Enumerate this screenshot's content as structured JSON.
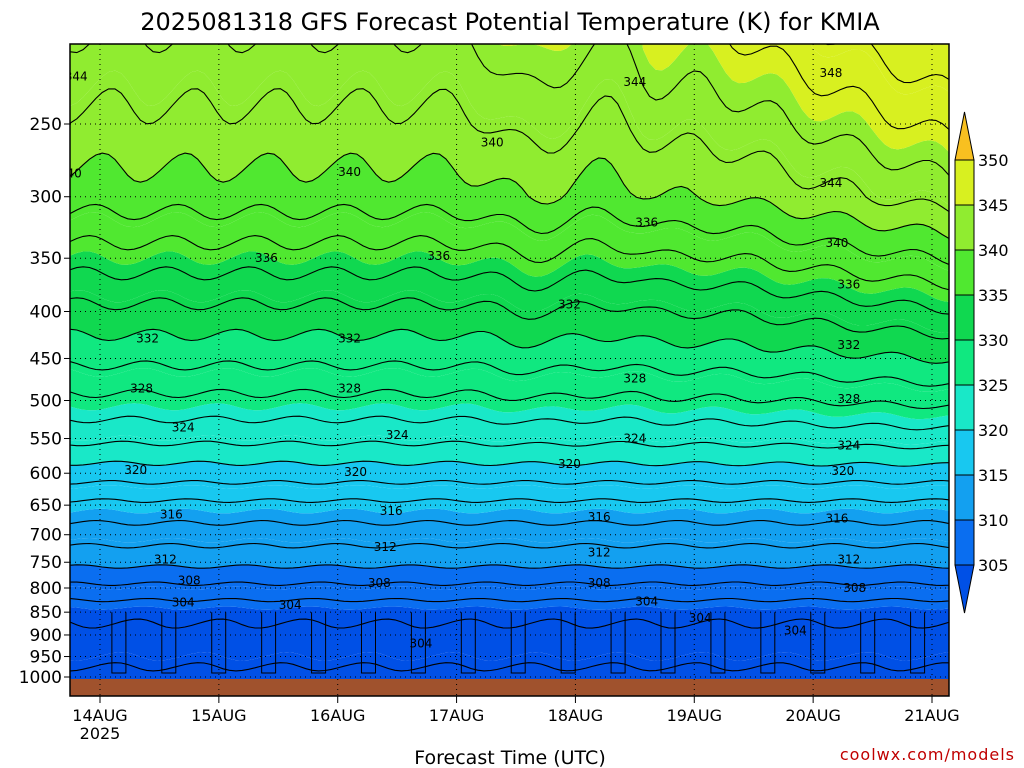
{
  "chart_data": {
    "type": "heatmap",
    "title": "2025081318 GFS Forecast Potential Temperature (K) for KMIA",
    "xlabel": "Forecast Time (UTC)",
    "ylabel": "",
    "credit": "coolwx.com/models",
    "x_tick_labels": [
      "14AUG",
      "15AUG",
      "16AUG",
      "17AUG",
      "18AUG",
      "19AUG",
      "20AUG",
      "21AUG"
    ],
    "x_tick_sublabel": "2025",
    "y_axis_scale": "log-pressure",
    "y_ticks": [
      250,
      300,
      350,
      400,
      450,
      500,
      550,
      600,
      650,
      700,
      750,
      800,
      850,
      900,
      950,
      1000
    ],
    "ylim": [
      1000,
      200
    ],
    "grid": true,
    "colorbar": {
      "levels": [
        305,
        310,
        315,
        320,
        325,
        330,
        335,
        340,
        345,
        350
      ],
      "labels": [
        "305",
        "310",
        "315",
        "320",
        "325",
        "330",
        "335",
        "340",
        "345",
        "350"
      ],
      "colors": [
        "#0050e6",
        "#0a6ef0",
        "#13a0f0",
        "#18c8f0",
        "#19e8c8",
        "#10e880",
        "#10d850",
        "#50e830",
        "#90ec30",
        "#d8f020",
        "#ffff20",
        "#f8c020"
      ],
      "extend": "both"
    },
    "ground_color": "#a0522d",
    "contour_labels": [
      {
        "value": "344",
        "time": -0.2,
        "p": 222
      },
      {
        "value": "340",
        "time": -0.25,
        "p": 283
      },
      {
        "value": "336",
        "time": 1.4,
        "p": 350
      },
      {
        "value": "332",
        "time": 0.4,
        "p": 428
      },
      {
        "value": "328",
        "time": 0.35,
        "p": 485
      },
      {
        "value": "324",
        "time": 0.7,
        "p": 535
      },
      {
        "value": "320",
        "time": 0.3,
        "p": 595
      },
      {
        "value": "316",
        "time": 0.6,
        "p": 665
      },
      {
        "value": "312",
        "time": 0.55,
        "p": 745
      },
      {
        "value": "308",
        "time": 0.75,
        "p": 785
      },
      {
        "value": "304",
        "time": 0.7,
        "p": 830
      },
      {
        "value": "304",
        "time": 1.6,
        "p": 835
      },
      {
        "value": "340",
        "time": 2.1,
        "p": 282
      },
      {
        "value": "336",
        "time": 2.85,
        "p": 348
      },
      {
        "value": "332",
        "time": 2.1,
        "p": 428
      },
      {
        "value": "328",
        "time": 2.1,
        "p": 485
      },
      {
        "value": "324",
        "time": 2.5,
        "p": 545
      },
      {
        "value": "320",
        "time": 2.15,
        "p": 598
      },
      {
        "value": "316",
        "time": 2.45,
        "p": 660
      },
      {
        "value": "312",
        "time": 2.4,
        "p": 722
      },
      {
        "value": "308",
        "time": 2.35,
        "p": 790
      },
      {
        "value": "304",
        "time": 2.7,
        "p": 920
      },
      {
        "value": "340",
        "time": 3.3,
        "p": 262
      },
      {
        "value": "332",
        "time": 3.95,
        "p": 393
      },
      {
        "value": "320",
        "time": 3.95,
        "p": 586
      },
      {
        "value": "316",
        "time": 4.2,
        "p": 670
      },
      {
        "value": "312",
        "time": 4.2,
        "p": 732
      },
      {
        "value": "308",
        "time": 4.2,
        "p": 790
      },
      {
        "value": "344",
        "time": 4.5,
        "p": 225
      },
      {
        "value": "336",
        "time": 4.6,
        "p": 320
      },
      {
        "value": "328",
        "time": 4.5,
        "p": 473
      },
      {
        "value": "324",
        "time": 4.5,
        "p": 550
      },
      {
        "value": "304",
        "time": 4.6,
        "p": 828
      },
      {
        "value": "304",
        "time": 5.05,
        "p": 862
      },
      {
        "value": "348",
        "time": 6.15,
        "p": 220
      },
      {
        "value": "344",
        "time": 6.15,
        "p": 290
      },
      {
        "value": "340",
        "time": 6.2,
        "p": 337
      },
      {
        "value": "336",
        "time": 6.3,
        "p": 374
      },
      {
        "value": "332",
        "time": 6.3,
        "p": 435
      },
      {
        "value": "328",
        "time": 6.3,
        "p": 498
      },
      {
        "value": "324",
        "time": 6.3,
        "p": 560
      },
      {
        "value": "320",
        "time": 6.25,
        "p": 597
      },
      {
        "value": "316",
        "time": 6.2,
        "p": 672
      },
      {
        "value": "312",
        "time": 6.3,
        "p": 745
      },
      {
        "value": "308",
        "time": 6.35,
        "p": 800
      },
      {
        "value": "304",
        "time": 5.85,
        "p": 890
      }
    ]
  }
}
